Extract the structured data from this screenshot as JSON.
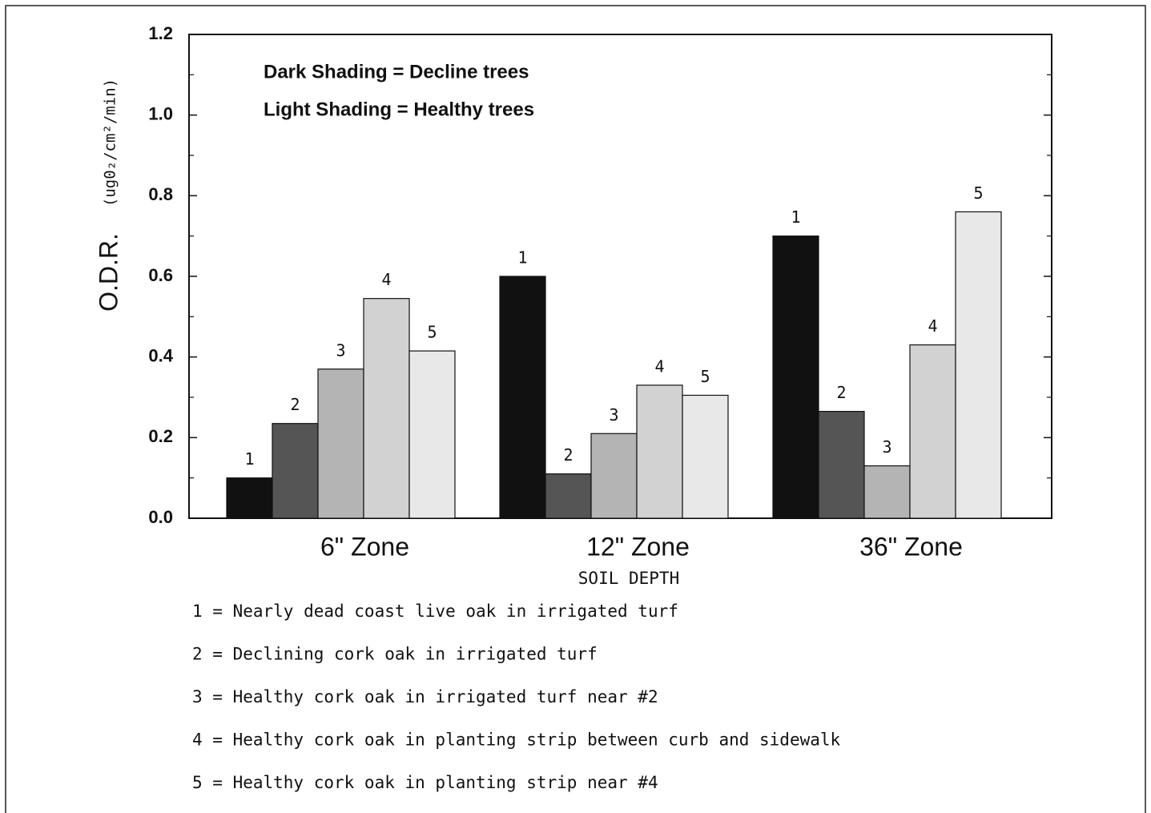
{
  "chart_data": {
    "type": "bar",
    "y_label": "O.D.R.",
    "y_unit": "(ug0₂/cm²/min)",
    "x_label": "SOIL DEPTH",
    "annotations": [
      "Dark Shading = Decline trees",
      "Light Shading = Healthy trees"
    ],
    "categories": [
      "6\" Zone",
      "12\" Zone",
      "36\" Zone"
    ],
    "series": [
      {
        "name": "1",
        "color": "#111111",
        "values": [
          0.1,
          0.6,
          0.7
        ]
      },
      {
        "name": "2",
        "color": "#555555",
        "values": [
          0.235,
          0.11,
          0.265
        ]
      },
      {
        "name": "3",
        "color": "#b4b4b4",
        "values": [
          0.37,
          0.21,
          0.13
        ]
      },
      {
        "name": "4",
        "color": "#d2d2d2",
        "values": [
          0.545,
          0.33,
          0.43
        ]
      },
      {
        "name": "5",
        "color": "#e8e8e8",
        "values": [
          0.415,
          0.305,
          0.76
        ]
      }
    ],
    "notes": [
      "1 = Nearly dead coast live oak in irrigated turf",
      "2 = Declining cork oak in irrigated turf",
      "3 = Healthy cork oak in irrigated turf near #2",
      "4 = Healthy cork oak in planting strip between curb and sidewalk",
      "5 = Healthy cork oak in planting strip near #4"
    ],
    "ylim": [
      0,
      1.2
    ],
    "yticks": [
      {
        "value": 0,
        "label": "0.0"
      },
      0.2,
      0.4,
      0.6,
      0.8,
      {
        "value": 1,
        "label": "1.0"
      },
      1.2
    ],
    "yticks_minor": [
      0.1,
      0.3,
      0.5,
      0.7,
      0.9,
      1.1
    ],
    "grid": false
  }
}
